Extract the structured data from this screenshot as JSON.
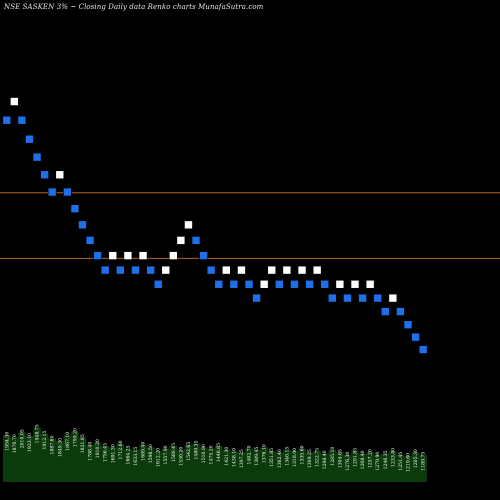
{
  "title": "NSE SASKEN  3% ~  Closing Daily data  Renko  charts MunafaSutra.com",
  "colors": {
    "background": "#000000",
    "up_brick": "#ffffff",
    "down_brick": "#1f6fe8",
    "reference_line": "#b5651d",
    "volume_fill": "#0b3a0b",
    "volume_label": "#ffffff"
  },
  "chart_data": {
    "type": "renko",
    "brick_size_percent": 3,
    "bricks": [
      {
        "dir": "down",
        "level": 1810
      },
      {
        "dir": "up",
        "level": 1864
      },
      {
        "dir": "down",
        "level": 1810
      },
      {
        "dir": "down",
        "level": 1755
      },
      {
        "dir": "down",
        "level": 1703
      },
      {
        "dir": "down",
        "level": 1652
      },
      {
        "dir": "down",
        "level": 1602
      },
      {
        "dir": "up",
        "level": 1652
      },
      {
        "dir": "down",
        "level": 1602
      },
      {
        "dir": "down",
        "level": 1554
      },
      {
        "dir": "down",
        "level": 1507
      },
      {
        "dir": "down",
        "level": 1462
      },
      {
        "dir": "down",
        "level": 1418
      },
      {
        "dir": "down",
        "level": 1376
      },
      {
        "dir": "up",
        "level": 1418
      },
      {
        "dir": "down",
        "level": 1376
      },
      {
        "dir": "up",
        "level": 1418
      },
      {
        "dir": "down",
        "level": 1376
      },
      {
        "dir": "up",
        "level": 1418
      },
      {
        "dir": "down",
        "level": 1376
      },
      {
        "dir": "down",
        "level": 1335
      },
      {
        "dir": "up",
        "level": 1376
      },
      {
        "dir": "up",
        "level": 1418
      },
      {
        "dir": "up",
        "level": 1462
      },
      {
        "dir": "up",
        "level": 1507
      },
      {
        "dir": "down",
        "level": 1462
      },
      {
        "dir": "down",
        "level": 1418
      },
      {
        "dir": "down",
        "level": 1376
      },
      {
        "dir": "down",
        "level": 1335
      },
      {
        "dir": "up",
        "level": 1376
      },
      {
        "dir": "down",
        "level": 1335
      },
      {
        "dir": "up",
        "level": 1376
      },
      {
        "dir": "down",
        "level": 1335
      },
      {
        "dir": "down",
        "level": 1295
      },
      {
        "dir": "up",
        "level": 1335
      },
      {
        "dir": "up",
        "level": 1376
      },
      {
        "dir": "down",
        "level": 1335
      },
      {
        "dir": "up",
        "level": 1376
      },
      {
        "dir": "down",
        "level": 1335
      },
      {
        "dir": "up",
        "level": 1376
      },
      {
        "dir": "down",
        "level": 1335
      },
      {
        "dir": "up",
        "level": 1376
      },
      {
        "dir": "down",
        "level": 1335
      },
      {
        "dir": "down",
        "level": 1295
      },
      {
        "dir": "up",
        "level": 1335
      },
      {
        "dir": "down",
        "level": 1295
      },
      {
        "dir": "up",
        "level": 1335
      },
      {
        "dir": "down",
        "level": 1295
      },
      {
        "dir": "up",
        "level": 1335
      },
      {
        "dir": "down",
        "level": 1295
      },
      {
        "dir": "down",
        "level": 1256
      },
      {
        "dir": "up",
        "level": 1295
      },
      {
        "dir": "down",
        "level": 1256
      },
      {
        "dir": "down",
        "level": 1218
      },
      {
        "dir": "down",
        "level": 1182
      },
      {
        "dir": "down",
        "level": 1146
      }
    ],
    "reference_lines": [
      1600,
      1410
    ],
    "y_range": [
      1000,
      2100
    ],
    "volume": [
      38,
      36,
      40,
      37,
      44,
      39,
      35,
      33,
      38,
      41,
      36,
      30,
      32,
      29,
      28,
      31,
      27,
      26,
      30,
      28,
      25,
      27,
      29,
      26,
      30,
      31,
      28,
      27,
      29,
      26,
      25,
      24,
      27,
      26,
      28,
      25,
      24,
      26,
      25,
      27,
      24,
      25,
      23,
      26,
      24,
      22,
      25,
      23,
      24,
      22,
      23,
      25,
      22,
      21,
      24,
      22
    ],
    "volume_range": [
      0,
      70
    ],
    "tick_labels": [
      "1954.30",
      "1870.70",
      "2010.05",
      "1923.10",
      "1948.75",
      "1912.15",
      "1887.60",
      "1849.30",
      "1867.10",
      "1799.20",
      "1821.85",
      "1788.40",
      "1810.30",
      "1756.45",
      "1691.30",
      "1712.60",
      "1664.25",
      "1633.15",
      "1689.40",
      "1598.50",
      "1612.20",
      "1557.90",
      "1580.45",
      "1530.20",
      "1542.65",
      "1489.35",
      "1510.90",
      "1475.20",
      "1446.85",
      "1421.30",
      "1438.10",
      "1397.25",
      "1402.70",
      "1389.45",
      "1376.10",
      "1351.85",
      "1362.40",
      "1340.15",
      "1318.90",
      "1335.60",
      "1309.25",
      "1322.75",
      "1298.40",
      "1285.10",
      "1304.65",
      "1276.30",
      "1291.85",
      "1268.40",
      "1257.20",
      "1279.90",
      "1246.35",
      "1233.80",
      "1251.45",
      "1219.60",
      "1205.30",
      "1189.75"
    ]
  }
}
